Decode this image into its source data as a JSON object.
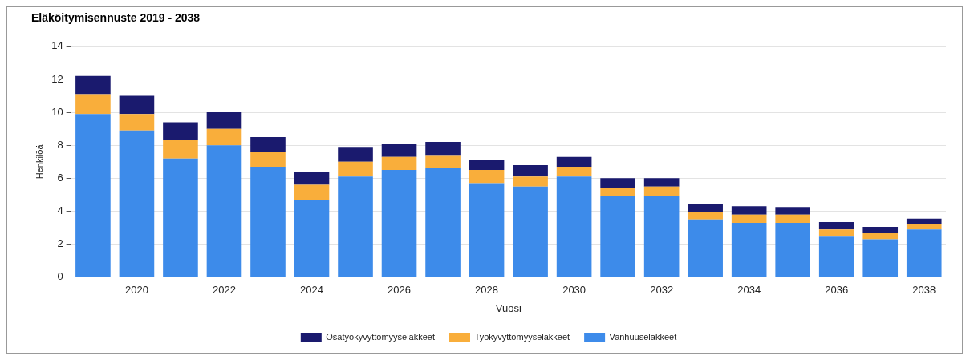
{
  "chart_data": {
    "type": "bar",
    "title": "Eläköitymisennuste 2019 - 2038",
    "xlabel": "Vuosi",
    "ylabel": "Henkilöä",
    "categories": [
      null,
      "2020",
      null,
      "2022",
      null,
      "2024",
      null,
      "2026",
      null,
      "2028",
      null,
      "2030",
      null,
      "2032",
      null,
      "2034",
      null,
      "2036",
      null,
      "2038"
    ],
    "stacked": true,
    "ylim": [
      0,
      14
    ],
    "yticks": [
      0,
      2,
      4,
      6,
      8,
      10,
      12,
      14
    ],
    "grid": "y",
    "legend": "bottom",
    "series": [
      {
        "name": "Vanhuuseläkkeet",
        "color": "#3d8bea",
        "values": [
          9.9,
          8.9,
          7.2,
          8.0,
          6.7,
          4.7,
          6.1,
          6.5,
          6.6,
          5.7,
          5.5,
          6.1,
          4.9,
          4.9,
          3.5,
          3.3,
          3.3,
          2.5,
          2.3,
          2.9
        ]
      },
      {
        "name": "Työkyvyttömyyseläkkeet",
        "color": "#f9ae3b",
        "values": [
          1.2,
          1.0,
          1.1,
          1.0,
          0.9,
          0.9,
          0.9,
          0.8,
          0.8,
          0.8,
          0.6,
          0.6,
          0.5,
          0.6,
          0.45,
          0.5,
          0.5,
          0.4,
          0.4,
          0.35
        ]
      },
      {
        "name": "Osatyökyvyttömyyseläkkeet",
        "color": "#1a1a6e",
        "values": [
          1.1,
          1.1,
          1.1,
          1.0,
          0.9,
          0.8,
          0.9,
          0.8,
          0.8,
          0.6,
          0.7,
          0.6,
          0.6,
          0.5,
          0.5,
          0.5,
          0.45,
          0.45,
          0.35,
          0.3
        ]
      }
    ]
  }
}
